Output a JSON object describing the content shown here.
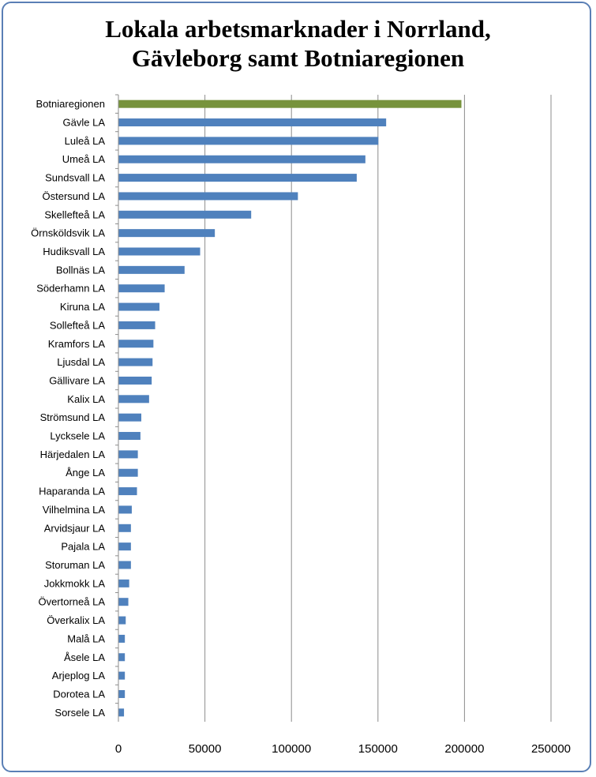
{
  "chart_data": {
    "type": "bar",
    "orientation": "horizontal",
    "title_lines": [
      "Lokala arbetsmarknader i Norrland,",
      "Gävleborg samt Botniaregionen"
    ],
    "categories": [
      "Botniaregionen",
      "Gävle LA",
      "Luleå LA",
      "Umeå LA",
      "Sundsvall LA",
      "Östersund LA",
      "Skellefteå LA",
      "Örnsköldsvik LA",
      "Hudiksvall LA",
      "Bollnäs LA",
      "Söderhamn LA",
      "Kiruna LA",
      "Sollefteå LA",
      "Kramfors LA",
      "Ljusdal LA",
      "Gällivare LA",
      "Kalix LA",
      "Strömsund LA",
      "Lycksele LA",
      "Härjedalen LA",
      "Ånge LA",
      "Haparanda LA",
      "Vilhelmina LA",
      "Arvidsjaur LA",
      "Pajala LA",
      "Storuman LA",
      "Jokkmokk LA",
      "Övertorneå LA",
      "Överkalix LA",
      "Malå LA",
      "Åsele LA",
      "Arjeplog LA",
      "Dorotea LA",
      "Sorsele LA"
    ],
    "values": [
      198000,
      154500,
      150000,
      142500,
      137500,
      103500,
      76500,
      55500,
      47000,
      38000,
      26500,
      23500,
      21000,
      20000,
      19500,
      19000,
      17500,
      13000,
      12500,
      11000,
      11000,
      10500,
      7500,
      7000,
      7000,
      7000,
      6000,
      5500,
      4000,
      3500,
      3500,
      3500,
      3500,
      3000
    ],
    "bar_colors": [
      "#77933c",
      "#4f81bd"
    ],
    "xlim": [
      0,
      250000
    ],
    "xticks": [
      "0",
      "50000",
      "100000",
      "150000",
      "200000",
      "250000"
    ],
    "grid": "vertical",
    "legend": "none"
  }
}
